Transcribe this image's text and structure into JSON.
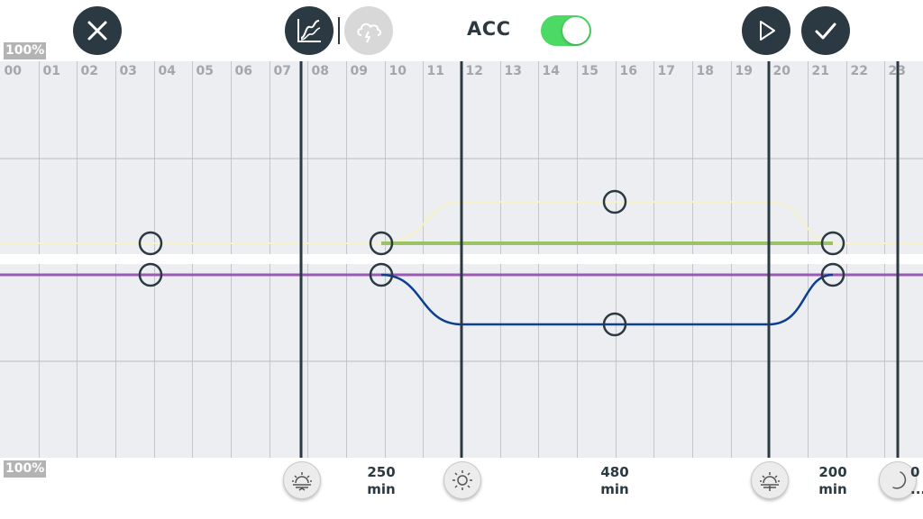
{
  "toolbar": {
    "close": "close",
    "curve_mode": "chart",
    "weather_mode": "weather",
    "acc_label": "ACC",
    "acc_enabled": true,
    "play": "play",
    "confirm": "confirm"
  },
  "scale": {
    "top_label": "100%",
    "bottom_label": "100%"
  },
  "hours": [
    "00",
    "01",
    "02",
    "03",
    "04",
    "05",
    "06",
    "07",
    "08",
    "09",
    "10",
    "11",
    "12",
    "13",
    "14",
    "15",
    "16",
    "17",
    "18",
    "19",
    "20",
    "21",
    "22",
    "23"
  ],
  "phases": [
    {
      "name": "sunrise",
      "icon": "sunrise-icon"
    },
    {
      "name": "day",
      "icon": "sun-icon",
      "duration_value": "250",
      "duration_unit": "min"
    },
    {
      "name": "sunset",
      "icon": "sunset-icon",
      "duration_value": "480",
      "duration_unit": "min"
    },
    {
      "name": "night",
      "icon": "moon-icon",
      "duration_value": "200",
      "duration_unit": "min"
    },
    {
      "name": "next",
      "duration_value": "0",
      "duration_unit": "..."
    }
  ],
  "colors": {
    "dark": "#2b3a42",
    "toggle_on": "#4cd964",
    "channel_white": "#f7f3c8",
    "channel_green": "#9cc266",
    "channel_purple": "#9b59b6",
    "channel_blue": "#0d3f8f"
  }
}
